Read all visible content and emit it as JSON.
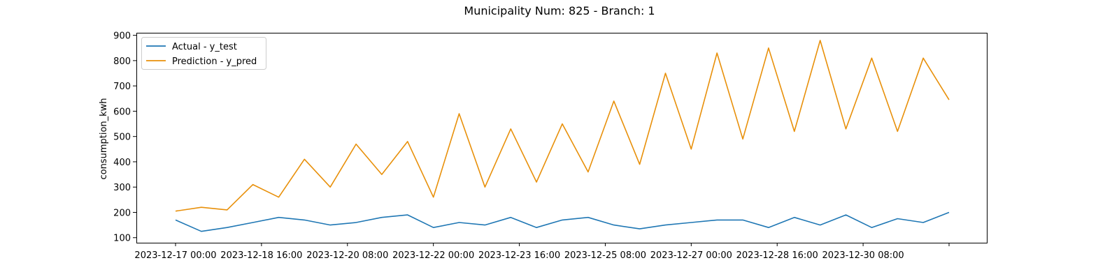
{
  "chart_data": {
    "type": "line",
    "title": "Municipality Num: 825 - Branch: 1",
    "xlabel": "",
    "ylabel": "consumption_kwh",
    "ylim": [
      80,
      910
    ],
    "yticks": [
      100,
      200,
      300,
      400,
      500,
      600,
      700,
      800,
      900
    ],
    "xticks": [
      "2023-12-17 00:00",
      "2023-12-18 16:00",
      "2023-12-20 08:00",
      "2023-12-22 00:00",
      "2023-12-23 16:00",
      "2023-12-25 08:00",
      "2023-12-27 00:00",
      "2023-12-28 16:00",
      "2023-12-30 08:00",
      ""
    ],
    "grid": false,
    "legend_position": "upper-left",
    "x": [
      "2023-12-17 00:00",
      "2023-12-17 12:00",
      "2023-12-18 00:00",
      "2023-12-18 12:00",
      "2023-12-19 00:00",
      "2023-12-19 12:00",
      "2023-12-20 00:00",
      "2023-12-20 12:00",
      "2023-12-21 00:00",
      "2023-12-21 12:00",
      "2023-12-22 00:00",
      "2023-12-22 12:00",
      "2023-12-23 00:00",
      "2023-12-23 12:00",
      "2023-12-24 00:00",
      "2023-12-24 12:00",
      "2023-12-25 00:00",
      "2023-12-25 12:00",
      "2023-12-26 00:00",
      "2023-12-26 12:00",
      "2023-12-27 00:00",
      "2023-12-27 12:00",
      "2023-12-28 00:00",
      "2023-12-28 12:00",
      "2023-12-29 00:00",
      "2023-12-29 12:00",
      "2023-12-30 00:00",
      "2023-12-30 12:00",
      "2023-12-31 00:00",
      "2023-12-31 12:00",
      "2024-01-01 00:00"
    ],
    "series": [
      {
        "name": "Actual - y_test",
        "color": "#1f77b4",
        "values": [
          170,
          125,
          140,
          160,
          180,
          170,
          150,
          160,
          180,
          190,
          140,
          160,
          150,
          180,
          140,
          170,
          180,
          150,
          135,
          150,
          160,
          170,
          170,
          140,
          180,
          150,
          190,
          140,
          175,
          160,
          200
        ]
      },
      {
        "name": "Prediction - y_pred",
        "color": "#e8900a",
        "values": [
          205,
          220,
          210,
          310,
          260,
          410,
          300,
          470,
          350,
          480,
          260,
          590,
          300,
          530,
          320,
          550,
          360,
          640,
          390,
          750,
          450,
          830,
          490,
          850,
          520,
          880,
          530,
          810,
          520,
          810,
          645
        ]
      }
    ]
  }
}
